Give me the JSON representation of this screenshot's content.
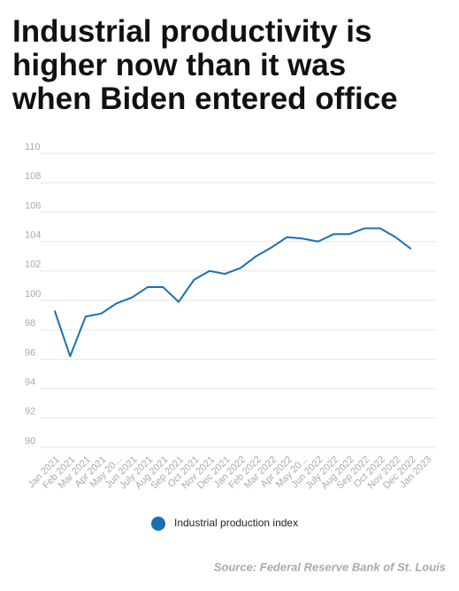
{
  "chart_data": {
    "type": "line",
    "title": [
      "Industrial productivity is",
      "higher now than it was",
      "when Biden entered office"
    ],
    "categories": [
      "Jan 2021",
      "Feb 2021",
      "Mar 2021",
      "Apr 2021",
      "May 20...",
      "Jun 2021",
      "July 2021",
      "Aug 2021",
      "Sep 2021",
      "Oct 2021",
      "Nov 2021",
      "Dec 2021",
      "Jan 2022",
      "Feb 2022",
      "Mar 2022",
      "Apr 2022",
      "May 20...",
      "Jun 2022",
      "July 2022",
      "Aug 2022",
      "Sep 2022",
      "Oct 2022",
      "Nov 2022",
      "Dec 2022",
      "Jan 2023"
    ],
    "series": [
      {
        "name": "Industrial production index",
        "color": "#1a6fb5",
        "values": [
          99.3,
          96.2,
          98.9,
          99.1,
          99.8,
          100.2,
          100.9,
          100.9,
          99.9,
          101.4,
          102.0,
          101.8,
          102.2,
          103.0,
          103.6,
          104.3,
          104.2,
          104.0,
          104.5,
          104.5,
          104.9,
          104.9,
          104.3,
          103.5,
          null
        ]
      }
    ],
    "ylim": [
      90,
      110
    ],
    "yticks": [
      90,
      92,
      94,
      96,
      98,
      100,
      102,
      104,
      106,
      108,
      110
    ],
    "grid": true,
    "legend": "bottom",
    "source": "Source: Federal Reserve Bank of St. Louis"
  }
}
